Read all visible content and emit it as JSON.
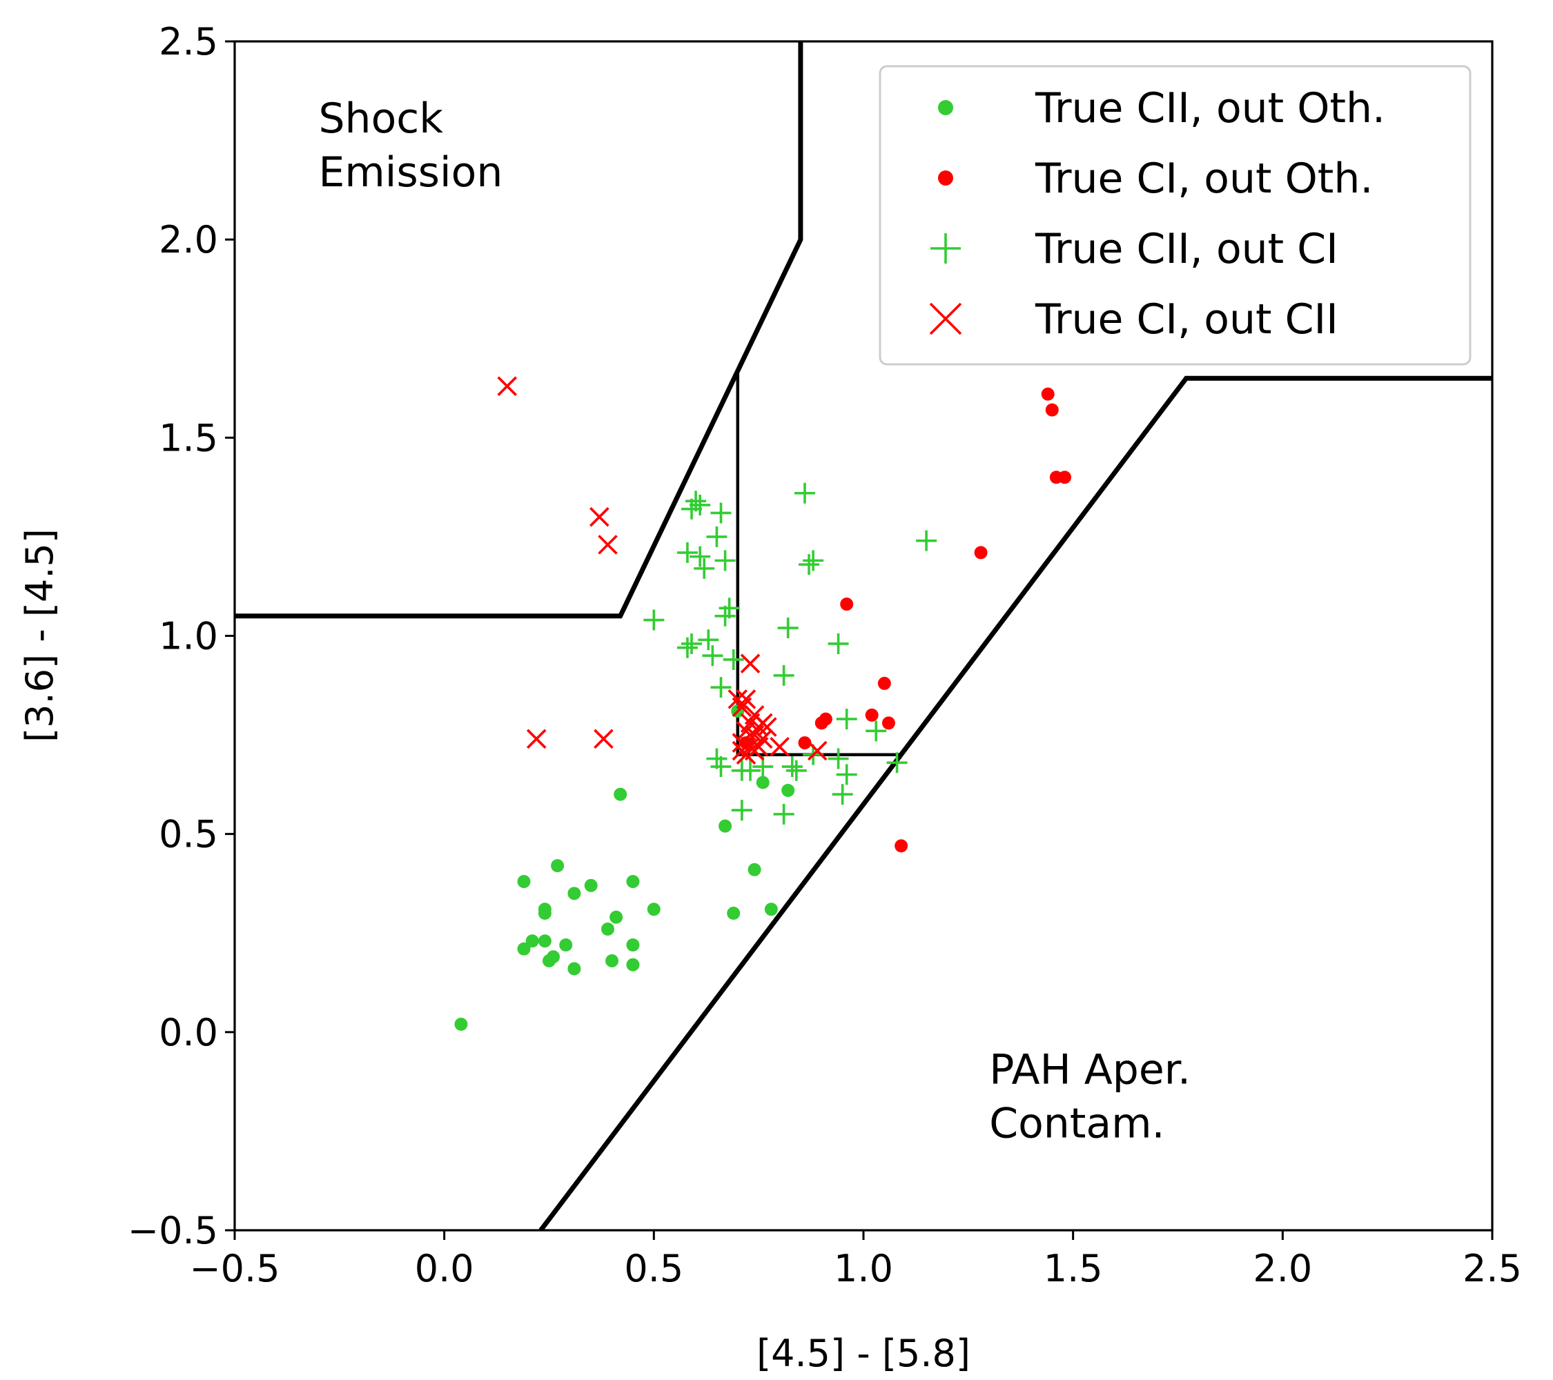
{
  "chart_data": {
    "type": "scatter",
    "title": "",
    "xlabel": "[4.5] - [5.8]",
    "ylabel": "[3.6] - [4.5]",
    "xlim": [
      -0.5,
      2.5
    ],
    "ylim": [
      -0.5,
      2.5
    ],
    "grid": false,
    "legend_position": "top-right",
    "x_ticks": [
      {
        "value": -0.5,
        "label": "−0.5"
      },
      {
        "value": 0.0,
        "label": "0.0"
      },
      {
        "value": 0.5,
        "label": "0.5"
      },
      {
        "value": 1.0,
        "label": "1.0"
      },
      {
        "value": 1.5,
        "label": "1.5"
      },
      {
        "value": 2.0,
        "label": "2.0"
      },
      {
        "value": 2.5,
        "label": "2.5"
      }
    ],
    "y_ticks": [
      {
        "value": -0.5,
        "label": "−0.5"
      },
      {
        "value": 0.0,
        "label": "0.0"
      },
      {
        "value": 0.5,
        "label": "0.5"
      },
      {
        "value": 1.0,
        "label": "1.0"
      },
      {
        "value": 1.5,
        "label": "1.5"
      },
      {
        "value": 2.0,
        "label": "2.0"
      },
      {
        "value": 2.5,
        "label": "2.5"
      }
    ],
    "annotations": [
      {
        "lines": [
          "Shock",
          "Emission"
        ],
        "x": -0.3,
        "y": 2.27
      },
      {
        "lines": [
          "PAH Aper.",
          "Contam."
        ],
        "x": 1.3,
        "y": -0.13
      }
    ],
    "boundary_lines": [
      {
        "name": "shock-boundary",
        "points": [
          [
            -0.5,
            1.05
          ],
          [
            0.42,
            1.05
          ],
          [
            0.85,
            2.0
          ],
          [
            0.85,
            2.5
          ]
        ],
        "width": "thick"
      },
      {
        "name": "pah-boundary",
        "points": [
          [
            0.23,
            -0.5
          ],
          [
            1.77,
            1.65
          ],
          [
            2.5,
            1.65
          ]
        ],
        "width": "thick"
      },
      {
        "name": "class-box",
        "points": [
          [
            0.7,
            1.67
          ],
          [
            0.7,
            0.7
          ],
          [
            1.09,
            0.7
          ]
        ],
        "width": "thin"
      }
    ],
    "series": [
      {
        "name": "True CII, out Oth.",
        "marker": "dot",
        "color": "#33cc33",
        "points": [
          [
            0.04,
            0.02
          ],
          [
            0.19,
            0.21
          ],
          [
            0.19,
            0.38
          ],
          [
            0.21,
            0.23
          ],
          [
            0.24,
            0.23
          ],
          [
            0.25,
            0.18
          ],
          [
            0.26,
            0.19
          ],
          [
            0.24,
            0.31
          ],
          [
            0.24,
            0.3
          ],
          [
            0.27,
            0.42
          ],
          [
            0.29,
            0.22
          ],
          [
            0.31,
            0.16
          ],
          [
            0.31,
            0.35
          ],
          [
            0.35,
            0.37
          ],
          [
            0.39,
            0.26
          ],
          [
            0.4,
            0.18
          ],
          [
            0.41,
            0.29
          ],
          [
            0.42,
            0.6
          ],
          [
            0.45,
            0.38
          ],
          [
            0.45,
            0.17
          ],
          [
            0.45,
            0.22
          ],
          [
            0.5,
            0.31
          ],
          [
            0.67,
            0.52
          ],
          [
            0.69,
            0.3
          ],
          [
            0.74,
            0.41
          ],
          [
            0.76,
            0.63
          ],
          [
            0.78,
            0.31
          ],
          [
            0.82,
            0.61
          ],
          [
            0.7,
            0.81
          ]
        ]
      },
      {
        "name": "True CI, out Oth.",
        "marker": "dot",
        "color": "#ff0000",
        "points": [
          [
            1.44,
            1.61
          ],
          [
            1.45,
            1.57
          ],
          [
            1.46,
            1.4
          ],
          [
            1.48,
            1.4
          ],
          [
            1.28,
            1.21
          ],
          [
            0.96,
            1.08
          ],
          [
            1.05,
            0.88
          ],
          [
            1.02,
            0.8
          ],
          [
            1.06,
            0.78
          ],
          [
            0.91,
            0.79
          ],
          [
            0.9,
            0.78
          ],
          [
            1.09,
            0.47
          ],
          [
            0.86,
            0.73
          ],
          [
            0.72,
            0.73
          ]
        ]
      },
      {
        "name": "True CII, out CI",
        "marker": "plus",
        "color": "#33cc33",
        "points": [
          [
            0.6,
            1.34
          ],
          [
            0.61,
            1.33
          ],
          [
            0.59,
            1.32
          ],
          [
            0.66,
            1.31
          ],
          [
            0.65,
            1.25
          ],
          [
            0.58,
            1.21
          ],
          [
            0.61,
            1.2
          ],
          [
            0.67,
            1.19
          ],
          [
            0.62,
            1.17
          ],
          [
            0.86,
            1.36
          ],
          [
            0.87,
            1.18
          ],
          [
            0.88,
            1.19
          ],
          [
            1.15,
            1.24
          ],
          [
            0.68,
            1.07
          ],
          [
            0.67,
            1.05
          ],
          [
            0.5,
            1.04
          ],
          [
            0.82,
            1.02
          ],
          [
            0.59,
            0.98
          ],
          [
            0.58,
            0.97
          ],
          [
            0.63,
            0.99
          ],
          [
            0.64,
            0.95
          ],
          [
            0.69,
            0.94
          ],
          [
            0.94,
            0.98
          ],
          [
            0.81,
            0.9
          ],
          [
            0.66,
            0.87
          ],
          [
            0.96,
            0.79
          ],
          [
            1.03,
            0.76
          ],
          [
            0.65,
            0.69
          ],
          [
            0.66,
            0.67
          ],
          [
            0.71,
            0.66
          ],
          [
            0.73,
            0.66
          ],
          [
            0.76,
            0.67
          ],
          [
            0.83,
            0.67
          ],
          [
            0.84,
            0.66
          ],
          [
            0.88,
            0.7
          ],
          [
            0.94,
            0.69
          ],
          [
            0.96,
            0.65
          ],
          [
            0.95,
            0.6
          ],
          [
            1.08,
            0.68
          ],
          [
            0.71,
            0.56
          ],
          [
            0.81,
            0.55
          ]
        ]
      },
      {
        "name": "True CI, out CII",
        "marker": "x",
        "color": "#ff0000",
        "points": [
          [
            0.15,
            1.63
          ],
          [
            0.37,
            1.3
          ],
          [
            0.39,
            1.23
          ],
          [
            0.22,
            0.74
          ],
          [
            0.38,
            0.74
          ],
          [
            0.73,
            0.93
          ],
          [
            0.7,
            0.84
          ],
          [
            0.72,
            0.84
          ],
          [
            0.71,
            0.82
          ],
          [
            0.74,
            0.8
          ],
          [
            0.73,
            0.78
          ],
          [
            0.76,
            0.78
          ],
          [
            0.75,
            0.77
          ],
          [
            0.77,
            0.77
          ],
          [
            0.72,
            0.76
          ],
          [
            0.74,
            0.75
          ],
          [
            0.76,
            0.74
          ],
          [
            0.71,
            0.73
          ],
          [
            0.73,
            0.72
          ],
          [
            0.75,
            0.72
          ],
          [
            0.74,
            0.71
          ],
          [
            0.71,
            0.71
          ],
          [
            0.72,
            0.7
          ],
          [
            0.8,
            0.72
          ],
          [
            0.89,
            0.71
          ]
        ]
      }
    ]
  }
}
